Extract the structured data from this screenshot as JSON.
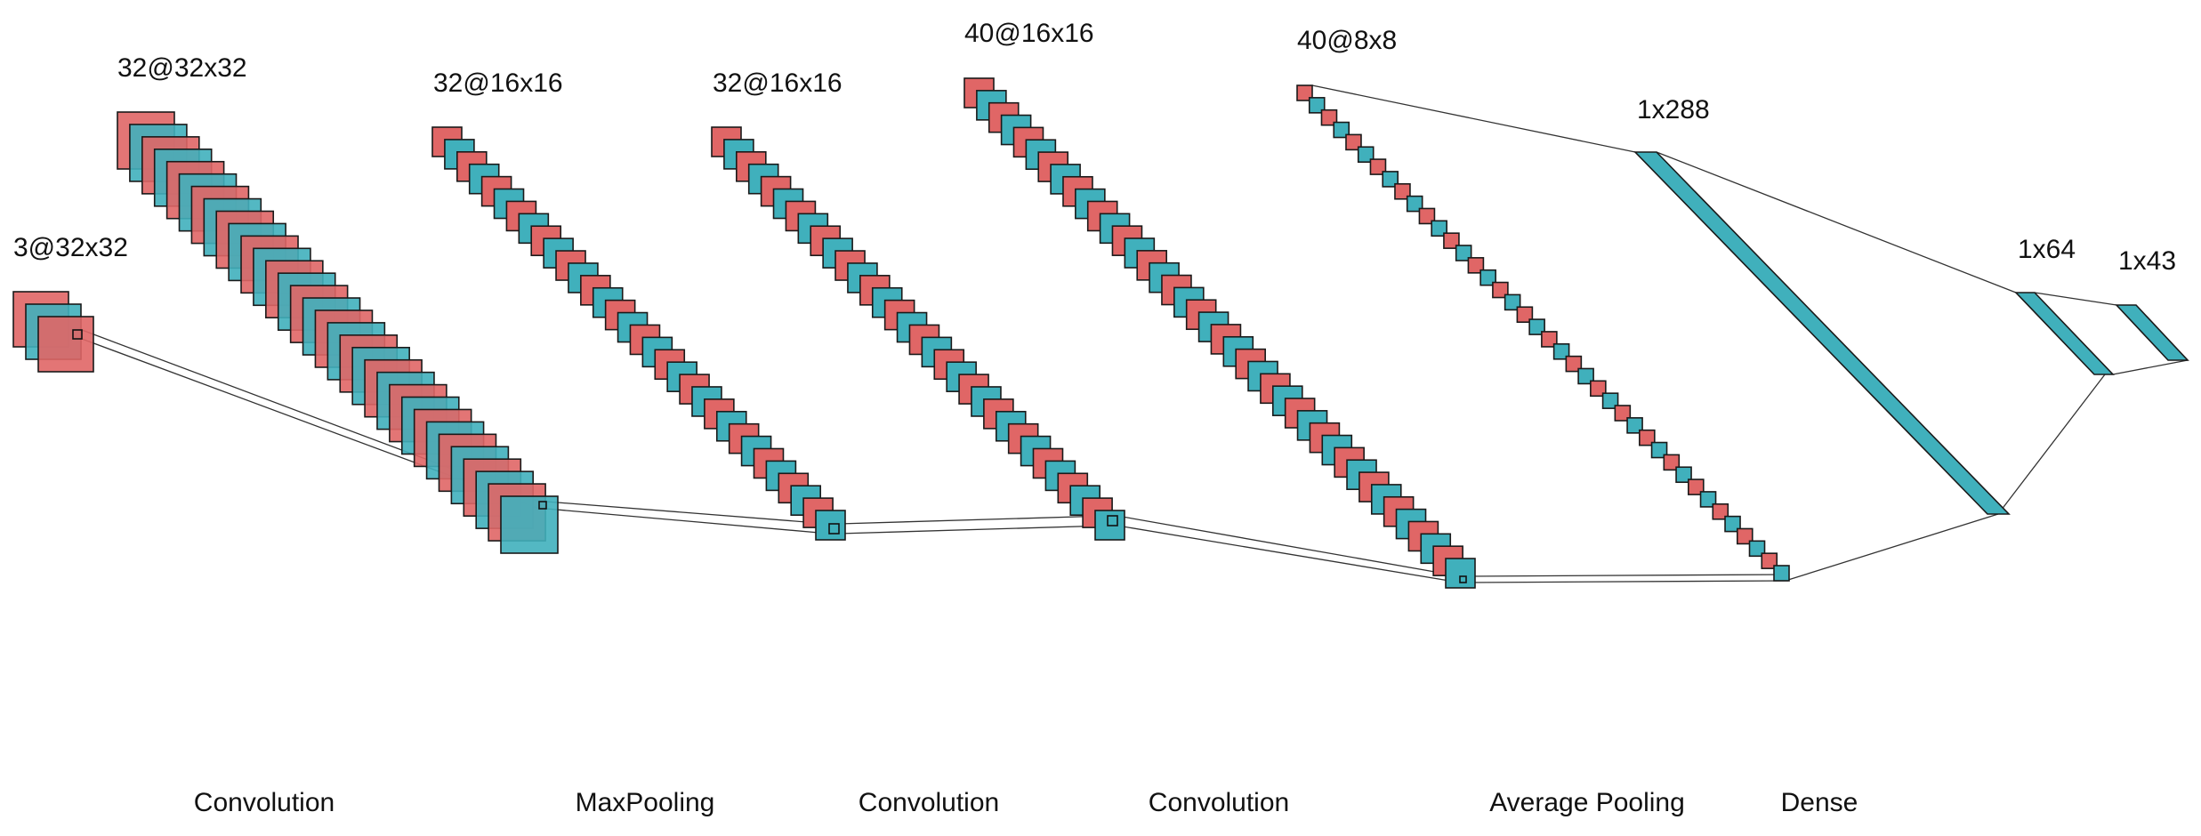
{
  "title": "",
  "colors": {
    "fill_a": "#e06666",
    "fill_b": "#40b0bc",
    "stroke": "#1a1a1a",
    "link": "#333333"
  },
  "layers": [
    {
      "label": "3@32x32",
      "maps": 3
    },
    {
      "label": "32@32x32",
      "maps": 32
    },
    {
      "label": "32@16x16",
      "maps": 32
    },
    {
      "label": "32@16x16",
      "maps": 32
    },
    {
      "label": "40@16x16",
      "maps": 40
    },
    {
      "label": "40@8x8",
      "maps": 40
    },
    {
      "label": "1x288",
      "maps": 1
    },
    {
      "label": "1x64",
      "maps": 1
    },
    {
      "label": "1x43",
      "maps": 1
    }
  ],
  "operations": [
    "Convolution",
    "MaxPooling",
    "Convolution",
    "Convolution",
    "Average Pooling",
    "Dense"
  ]
}
